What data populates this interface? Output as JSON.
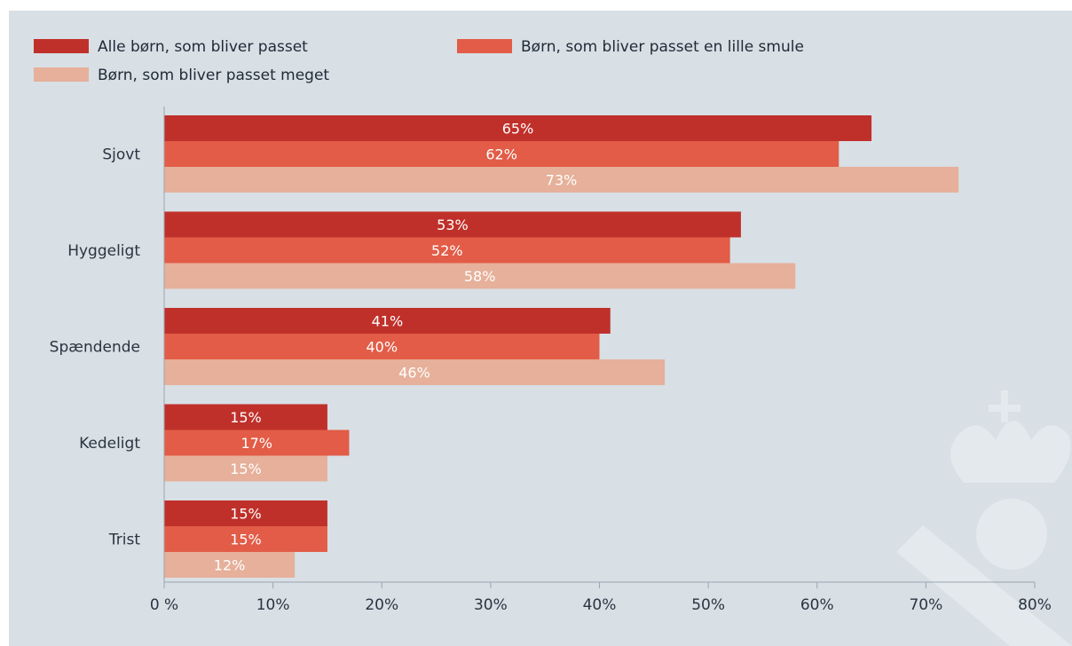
{
  "chart_data": {
    "type": "bar",
    "orientation": "horizontal",
    "categories": [
      "Sjovt",
      "Hyggeligt",
      "Spændende",
      "Kedeligt",
      "Trist"
    ],
    "series": [
      {
        "name": "Alle børn, som bliver passet",
        "color": "#c0302a",
        "values": [
          65,
          53,
          41,
          15,
          15
        ]
      },
      {
        "name": "Børn, som bliver passet en lille smule",
        "color": "#e25c47",
        "values": [
          62,
          52,
          40,
          17,
          15
        ]
      },
      {
        "name": "Børn, som bliver passet meget",
        "color": "#e6b09a",
        "values": [
          73,
          58,
          46,
          15,
          12
        ]
      }
    ],
    "data_labels": [
      [
        "65%",
        "53%",
        "41%",
        "15%",
        "15%"
      ],
      [
        "62%",
        "52%",
        "40%",
        "17%",
        "15%"
      ],
      [
        "73%",
        "58%",
        "46%",
        "15%",
        "12%"
      ]
    ],
    "x_ticks": [
      0,
      10,
      20,
      30,
      40,
      50,
      60,
      70,
      80
    ],
    "x_tick_labels": [
      "0 %",
      "10%",
      "20%",
      "30%",
      "40%",
      "50%",
      "60%",
      "70%",
      "80%"
    ],
    "xlim": [
      0,
      80
    ],
    "grid": false,
    "legend_position": "top-left",
    "title": "",
    "xlabel": "",
    "ylabel": ""
  },
  "watermark": {
    "color": "#e4e9ed",
    "icon": "crown-emblem-icon"
  }
}
